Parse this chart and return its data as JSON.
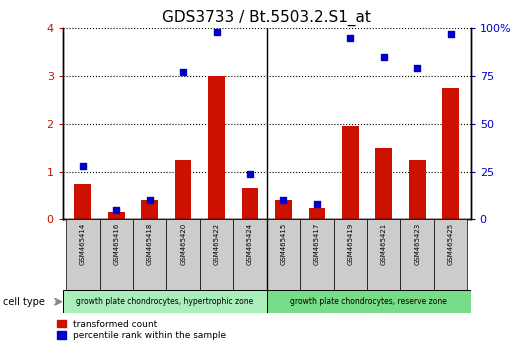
{
  "title": "GDS3733 / Bt.5503.2.S1_at",
  "samples": [
    "GSM465414",
    "GSM465416",
    "GSM465418",
    "GSM465420",
    "GSM465422",
    "GSM465424",
    "GSM465415",
    "GSM465417",
    "GSM465419",
    "GSM465421",
    "GSM465423",
    "GSM465425"
  ],
  "red_bars": [
    0.75,
    0.15,
    0.4,
    1.25,
    3.0,
    0.65,
    0.4,
    0.25,
    1.95,
    1.5,
    1.25,
    2.75
  ],
  "blue_dots_pct": [
    28,
    5,
    10,
    77,
    98,
    24,
    10,
    8,
    95,
    85,
    79,
    97
  ],
  "ylim_left": [
    0,
    4
  ],
  "ylim_right": [
    0,
    100
  ],
  "yticks_left": [
    0,
    1,
    2,
    3,
    4
  ],
  "yticks_right": [
    0,
    25,
    50,
    75,
    100
  ],
  "ytick_labels_right": [
    "0",
    "25",
    "50",
    "75",
    "100%"
  ],
  "group1_label": "growth plate chondrocytes, hypertrophic zone",
  "group2_label": "growth plate chondrocytes, reserve zone",
  "group1_count": 6,
  "group2_count": 6,
  "cell_type_label": "cell type",
  "legend1": "transformed count",
  "legend2": "percentile rank within the sample",
  "bar_color": "#cc1100",
  "dot_color": "#0000cc",
  "background_color": "#ffffff",
  "plot_bg": "#ffffff",
  "bar_width": 0.5,
  "group_bg": "#aaeebb",
  "group_bg2": "#77dd88",
  "sample_bg": "#cccccc",
  "title_fontsize": 11
}
